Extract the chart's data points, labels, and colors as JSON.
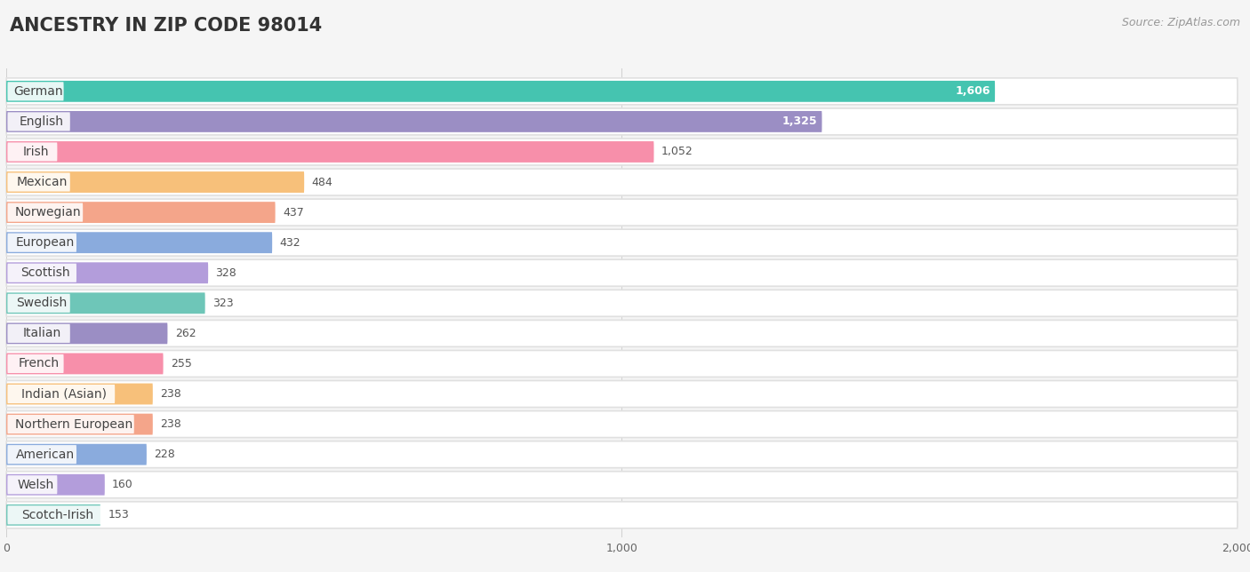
{
  "title": "ANCESTRY IN ZIP CODE 98014",
  "source": "Source: ZipAtlas.com",
  "categories": [
    "German",
    "English",
    "Irish",
    "Mexican",
    "Norwegian",
    "European",
    "Scottish",
    "Swedish",
    "Italian",
    "French",
    "Indian (Asian)",
    "Northern European",
    "American",
    "Welsh",
    "Scotch-Irish"
  ],
  "values": [
    1606,
    1325,
    1052,
    484,
    437,
    432,
    328,
    323,
    262,
    255,
    238,
    238,
    228,
    160,
    153
  ],
  "bar_colors": [
    "#45c4b0",
    "#9b8ec4",
    "#f78faa",
    "#f7c07a",
    "#f4a58a",
    "#8aabdd",
    "#b39ddb",
    "#6ec6b8",
    "#9b8ec4",
    "#f78faa",
    "#f7c07a",
    "#f4a58a",
    "#8aabdd",
    "#b39ddb",
    "#6ec6b8"
  ],
  "value_inside": [
    true,
    true,
    false,
    false,
    false,
    false,
    false,
    false,
    false,
    false,
    false,
    false,
    false,
    false,
    false
  ],
  "xlim": [
    0,
    2000
  ],
  "xticks": [
    0,
    1000,
    2000
  ],
  "background_color": "#f5f5f5",
  "row_bg_color": "#ffffff",
  "title_fontsize": 15,
  "source_fontsize": 9,
  "label_fontsize": 10,
  "value_fontsize": 9
}
